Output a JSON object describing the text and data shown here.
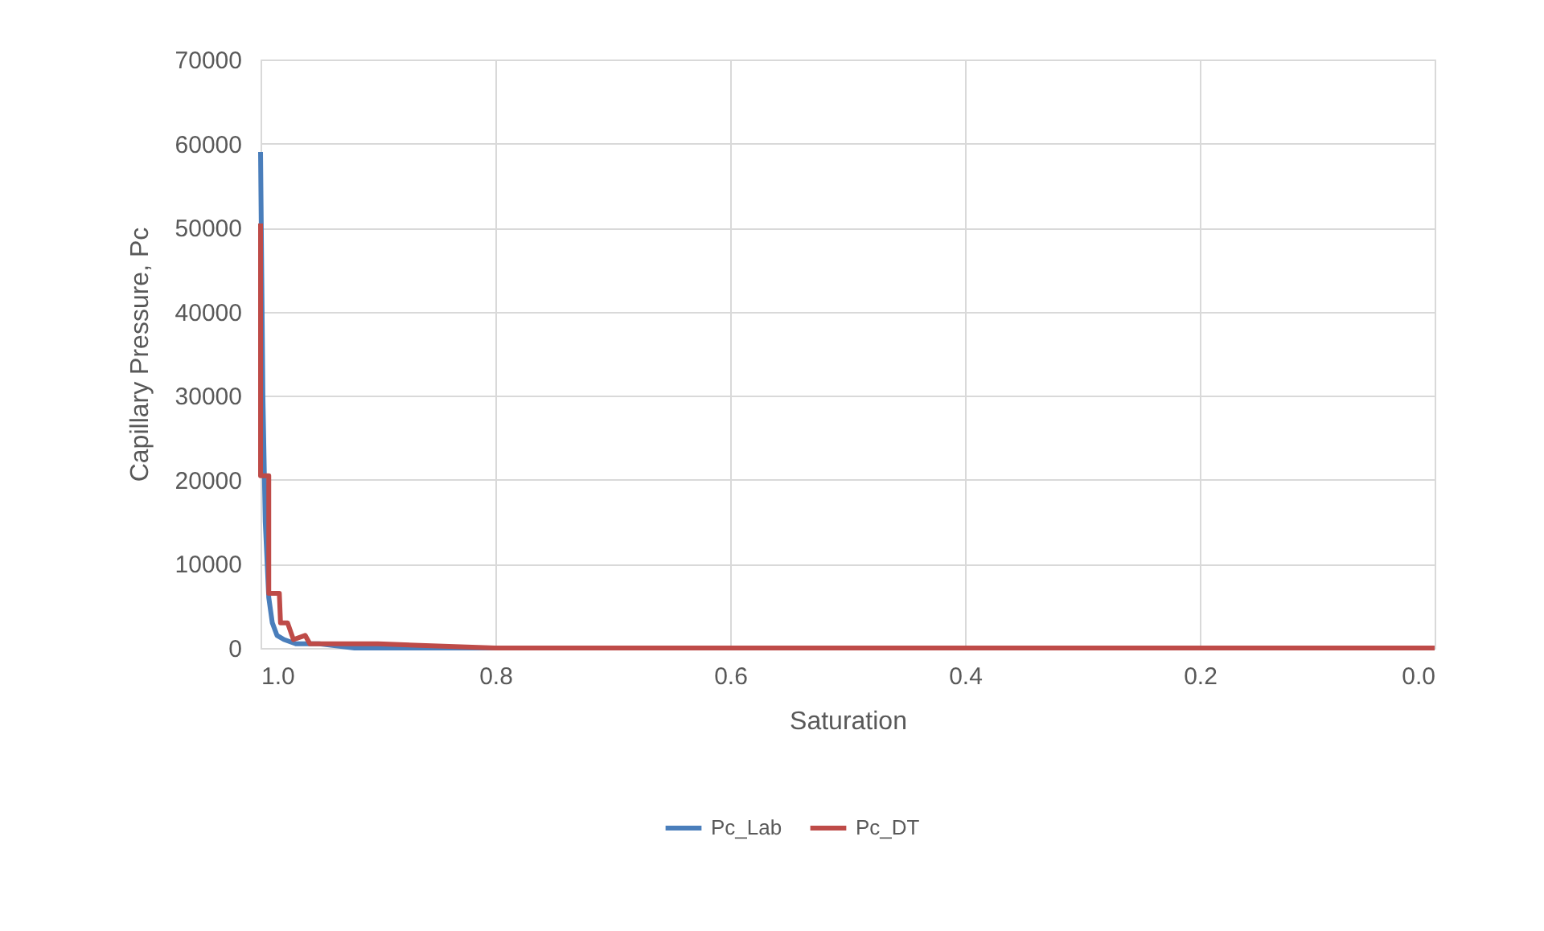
{
  "chart_data": {
    "type": "line",
    "xlabel": "Saturation",
    "ylabel": "Capillary Pressure, Pc",
    "xlim": [
      1.0,
      0.0
    ],
    "xticks": [
      {
        "value": 1.0,
        "label": "1.0"
      },
      {
        "value": 0.8,
        "label": "0.8"
      },
      {
        "value": 0.6,
        "label": "0.6"
      },
      {
        "value": 0.4,
        "label": "0.4"
      },
      {
        "value": 0.2,
        "label": "0.2"
      },
      {
        "value": 0.0,
        "label": "0.0"
      }
    ],
    "ylim": [
      0,
      70000
    ],
    "yticks": [
      0,
      10000,
      20000,
      30000,
      40000,
      50000,
      60000,
      70000
    ],
    "grid": true,
    "legend": "bottom",
    "marker": "none",
    "line_style": "solid",
    "series": [
      {
        "name": "Pc_Lab",
        "color": "#4a7ebb",
        "x": [
          1.0,
          0.998,
          0.996,
          0.993,
          0.99,
          0.986,
          0.98,
          0.97,
          0.95,
          0.92,
          0.85,
          0.7
        ],
        "values": [
          59000,
          30000,
          15000,
          6000,
          3000,
          1500,
          1000,
          500,
          500,
          0,
          0,
          0
        ]
      },
      {
        "name": "Pc_DT",
        "color": "#be4b48",
        "x": [
          1.0,
          1.0,
          0.993,
          0.993,
          0.984,
          0.983,
          0.977,
          0.972,
          0.962,
          0.958,
          0.944,
          0.93,
          0.9,
          0.8,
          0.6,
          0.4,
          0.2,
          0.0
        ],
        "values": [
          50500,
          20500,
          20500,
          6500,
          6500,
          3000,
          3000,
          1000,
          1500,
          500,
          500,
          500,
          500,
          0,
          0,
          0,
          0,
          0
        ]
      }
    ]
  }
}
